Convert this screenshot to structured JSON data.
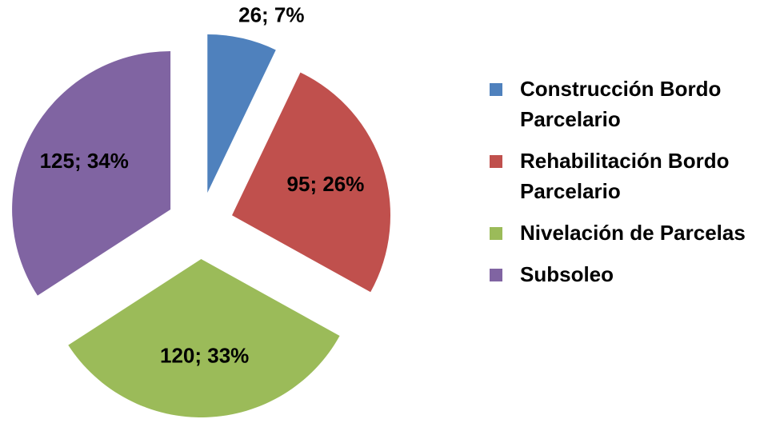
{
  "chart_data": {
    "type": "pie",
    "categories": [
      "Construcción Bordo Parcelario",
      "Rehabilitación Bordo Parcelario",
      "Nivelación de Parcelas",
      "Subsoleo"
    ],
    "values": [
      26,
      95,
      120,
      125
    ],
    "value_labels": [
      "26;  7%",
      "95;  26%",
      "120;  33%",
      "125;  34%"
    ],
    "colors": [
      "#4f81bd",
      "#c0504d",
      "#9bbb59",
      "#8064a2"
    ],
    "legend": "right"
  }
}
